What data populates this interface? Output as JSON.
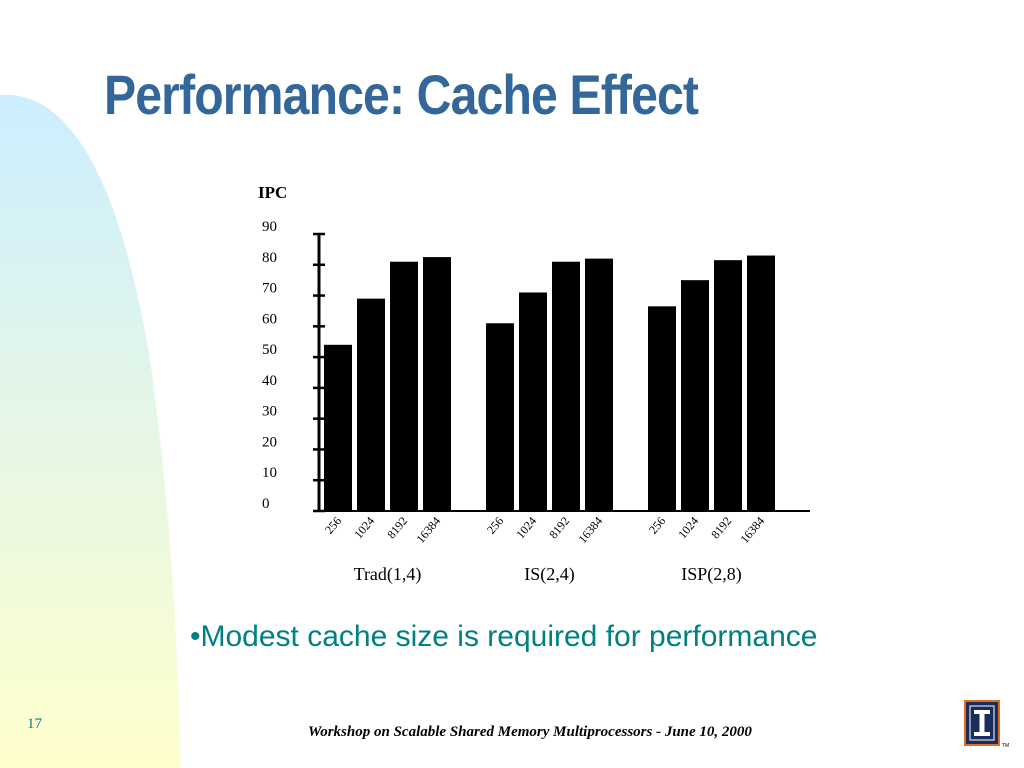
{
  "slide": {
    "title": "Performance: Cache Effect",
    "bullet": "•Modest cache size is required for performance",
    "footer": "Workshop on Scalable Shared Memory Multiprocessors - June 10, 2000",
    "slide_number": "17",
    "logo": "university-of-illinois-logo",
    "colors": {
      "title": "#336699",
      "bullet": "#008080",
      "background_gradient_top": "#cceeff",
      "background_gradient_bottom": "#ffffcc"
    }
  },
  "chart_data": {
    "type": "bar",
    "ylabel": "IPC",
    "ylim": [
      0,
      90
    ],
    "yticks": [
      "0",
      "10",
      "20",
      "30",
      "40",
      "50",
      "60",
      "70",
      "80",
      "90"
    ],
    "bar_color": "#000000",
    "grid": false,
    "groups": [
      {
        "label": "Trad(1,4)",
        "categories": [
          "256",
          "1024",
          "8192",
          "16384"
        ],
        "values": [
          54,
          69,
          81,
          82.5
        ]
      },
      {
        "label": "IS(2,4)",
        "categories": [
          "256",
          "1024",
          "8192",
          "16384"
        ],
        "values": [
          61,
          71,
          81,
          82
        ]
      },
      {
        "label": "ISP(2,8)",
        "categories": [
          "256",
          "1024",
          "8192",
          "16384"
        ],
        "values": [
          66.5,
          75,
          81.5,
          83
        ]
      }
    ]
  }
}
